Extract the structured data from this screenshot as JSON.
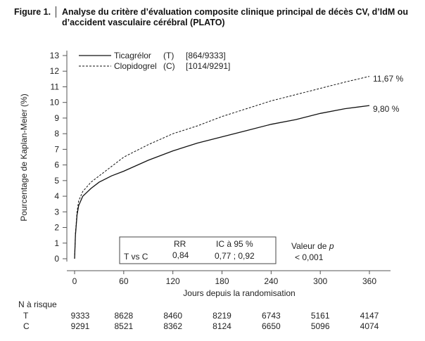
{
  "figure_label": "Figure 1.",
  "title": "Analyse du critère d’évaluation composite clinique principal de décès CV, d’IdM ou d’accident vasculaire cérébral (PLATO)",
  "chart_data": {
    "type": "line",
    "title": "Analyse du critère d’évaluation composite clinique principal de décès CV, d’IdM ou d’accident vasculaire cérébral (PLATO)",
    "xlabel": "Jours depuis la randomisation",
    "ylabel": "Pourcentage de Kaplan-Meier (%)",
    "xlim": [
      0,
      360
    ],
    "ylim": [
      0,
      13
    ],
    "xticks": [
      0,
      60,
      120,
      180,
      240,
      300,
      360
    ],
    "yticks": [
      0,
      1,
      2,
      3,
      4,
      5,
      6,
      7,
      8,
      9,
      10,
      11,
      12,
      13
    ],
    "grid": false,
    "legend_position": "top-left",
    "series": [
      {
        "name": "Ticagrélor",
        "abbr": "(T)",
        "counts": "[864/9333]",
        "style": "solid",
        "end_label": "9,80 %",
        "x": [
          0,
          1,
          3,
          5,
          10,
          20,
          30,
          45,
          60,
          90,
          120,
          150,
          180,
          210,
          240,
          270,
          300,
          330,
          360
        ],
        "y": [
          0,
          1.5,
          2.8,
          3.4,
          4.0,
          4.5,
          4.9,
          5.3,
          5.6,
          6.3,
          6.9,
          7.4,
          7.8,
          8.2,
          8.6,
          8.9,
          9.3,
          9.6,
          9.8
        ]
      },
      {
        "name": "Clopidogrel",
        "abbr": "(C)",
        "counts": "[1014/9291]",
        "style": "dashed",
        "end_label": "11,67 %",
        "x": [
          0,
          1,
          3,
          5,
          10,
          20,
          30,
          45,
          60,
          90,
          120,
          150,
          180,
          210,
          240,
          270,
          300,
          330,
          360
        ],
        "y": [
          0,
          1.6,
          3.0,
          3.7,
          4.3,
          4.9,
          5.3,
          5.9,
          6.5,
          7.3,
          8.0,
          8.5,
          9.1,
          9.6,
          10.1,
          10.5,
          10.9,
          11.3,
          11.67
        ]
      }
    ],
    "stats_box": {
      "comparison": "T vs C",
      "rr_label": "RR",
      "rr": "0,84",
      "ci_label": "IC à 95 %",
      "ci": "0,77 ; 0,92",
      "p_label": "Valeur de ",
      "p_italic": "p",
      "p": "< 0,001"
    },
    "risk_table": {
      "label": "N à risque",
      "rows": [
        {
          "group": "T",
          "values": [
            "9333",
            "8628",
            "8460",
            "8219",
            "6743",
            "5161",
            "4147"
          ]
        },
        {
          "group": "C",
          "values": [
            "9291",
            "8521",
            "8362",
            "8124",
            "6650",
            "5096",
            "4074"
          ]
        }
      ]
    }
  }
}
